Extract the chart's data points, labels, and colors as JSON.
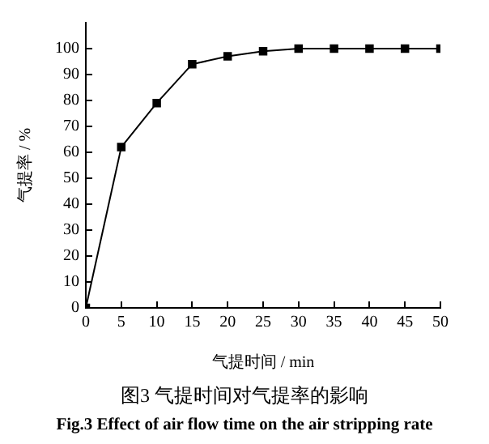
{
  "chart_data": {
    "type": "line",
    "xlabel": "气提时间 / min",
    "ylabel": "气提率 / %",
    "x": [
      0,
      5,
      10,
      15,
      20,
      25,
      30,
      35,
      40,
      45,
      50
    ],
    "series": [
      {
        "color": "#000000",
        "values": [
          0,
          62,
          79,
          94,
          97,
          99,
          100,
          100,
          100,
          100,
          100
        ]
      }
    ],
    "xlim": [
      0,
      50
    ],
    "xticks": [
      0,
      5,
      10,
      15,
      20,
      25,
      30,
      35,
      40,
      45,
      50
    ],
    "ylim": [
      0,
      110
    ],
    "yticks": [
      0,
      10,
      20,
      30,
      40,
      50,
      60,
      70,
      80,
      90,
      100
    ],
    "grid": false,
    "legend": false,
    "marker": "square",
    "line_style": "solid",
    "annotations": [
      "图3  气提时间对气提率的影响",
      "Fig.3 Effect of air flow time on the air stripping rate"
    ]
  }
}
